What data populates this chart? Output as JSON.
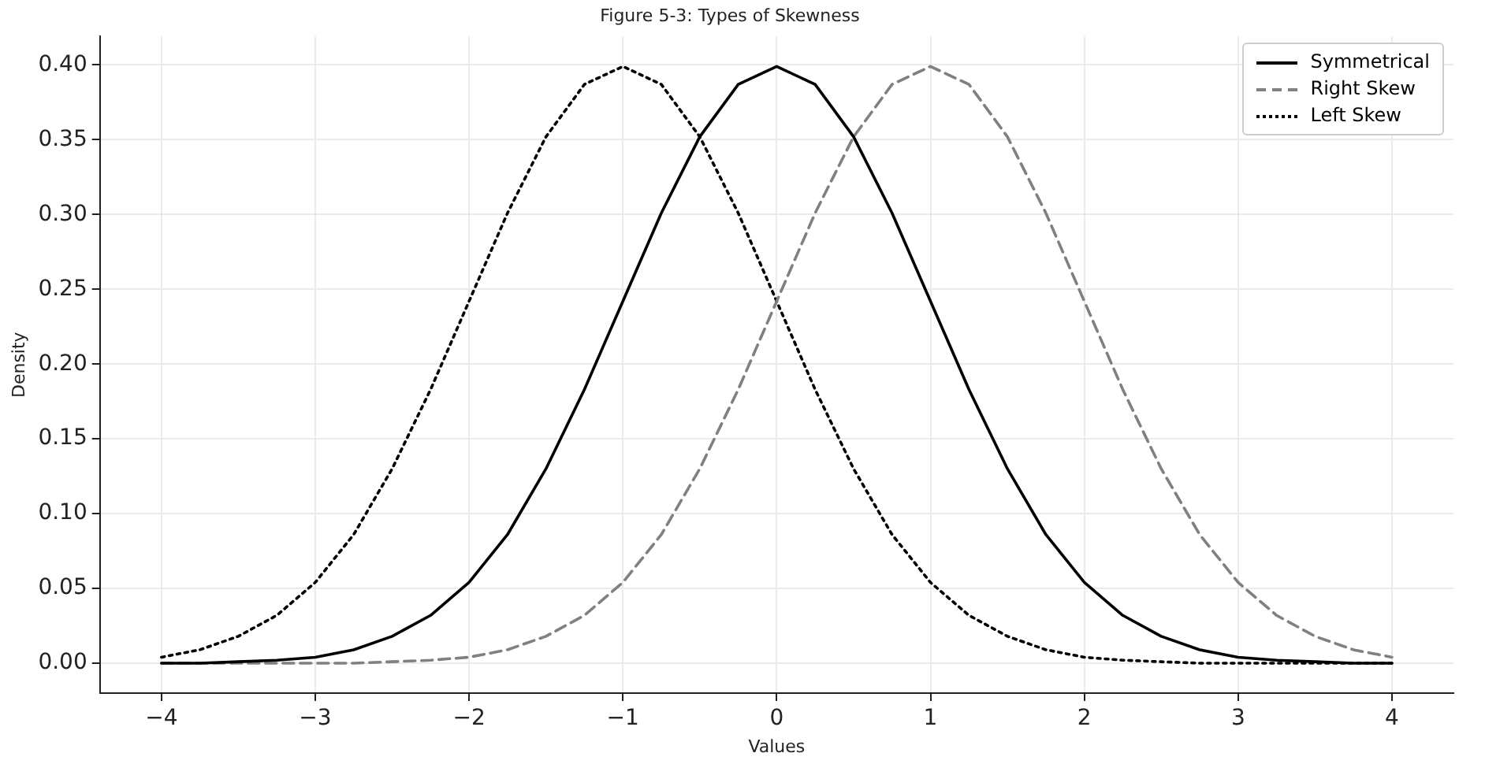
{
  "chart_data": {
    "type": "line",
    "title": "Figure 5-3: Types of Skewness",
    "xlabel": "Values",
    "ylabel": "Density",
    "x": [
      -4,
      -3.75,
      -3.5,
      -3.25,
      -3,
      -2.75,
      -2.5,
      -2.25,
      -2,
      -1.75,
      -1.5,
      -1.25,
      -1,
      -0.75,
      -0.5,
      -0.25,
      0,
      0.25,
      0.5,
      0.75,
      1,
      1.25,
      1.5,
      1.75,
      2,
      2.25,
      2.5,
      2.75,
      3,
      3.25,
      3.5,
      3.75,
      4
    ],
    "series": [
      {
        "name": "Symmetrical",
        "color": "#000000",
        "line_style": "solid",
        "values": [
          0.0,
          0.0,
          0.001,
          0.002,
          0.004,
          0.009,
          0.018,
          0.032,
          0.054,
          0.086,
          0.13,
          0.183,
          0.242,
          0.301,
          0.352,
          0.387,
          0.399,
          0.387,
          0.352,
          0.301,
          0.242,
          0.183,
          0.13,
          0.086,
          0.054,
          0.032,
          0.018,
          0.009,
          0.004,
          0.002,
          0.001,
          0.0,
          0.0
        ]
      },
      {
        "name": "Right Skew",
        "color": "#808080",
        "line_style": "dashed",
        "values": [
          0.0,
          0.0,
          0.0,
          0.0,
          0.0,
          0.0,
          0.001,
          0.002,
          0.004,
          0.009,
          0.018,
          0.032,
          0.054,
          0.086,
          0.13,
          0.183,
          0.242,
          0.301,
          0.352,
          0.387,
          0.399,
          0.387,
          0.352,
          0.301,
          0.242,
          0.183,
          0.13,
          0.086,
          0.054,
          0.032,
          0.018,
          0.009,
          0.004
        ]
      },
      {
        "name": "Left Skew",
        "color": "#000000",
        "line_style": "dotted",
        "values": [
          0.004,
          0.009,
          0.018,
          0.032,
          0.054,
          0.086,
          0.13,
          0.183,
          0.242,
          0.301,
          0.352,
          0.387,
          0.399,
          0.387,
          0.352,
          0.301,
          0.242,
          0.183,
          0.13,
          0.086,
          0.054,
          0.032,
          0.018,
          0.009,
          0.004,
          0.002,
          0.001,
          0.0,
          0.0,
          0.0,
          0.0,
          0.0,
          0.0
        ]
      }
    ],
    "xlim": [
      -4.4,
      4.4
    ],
    "xticks": [
      {
        "value": -4,
        "label": "−4"
      },
      {
        "value": -3,
        "label": "−3"
      },
      {
        "value": -2,
        "label": "−2"
      },
      {
        "value": -1,
        "label": "−1"
      },
      0,
      1,
      2,
      3,
      4
    ],
    "ylim": [
      -0.02,
      0.419
    ],
    "yticks": [
      {
        "value": 0,
        "label": "0.00"
      },
      {
        "value": 0.05,
        "label": "0.05"
      },
      {
        "value": 0.1,
        "label": "0.10"
      },
      {
        "value": 0.15,
        "label": "0.15"
      },
      {
        "value": 0.2,
        "label": "0.20"
      },
      {
        "value": 0.25,
        "label": "0.25"
      },
      {
        "value": 0.3,
        "label": "0.30"
      },
      {
        "value": 0.35,
        "label": "0.35"
      },
      {
        "value": 0.4,
        "label": "0.40"
      }
    ],
    "grid": true,
    "legend": "top right",
    "marker": "none"
  }
}
